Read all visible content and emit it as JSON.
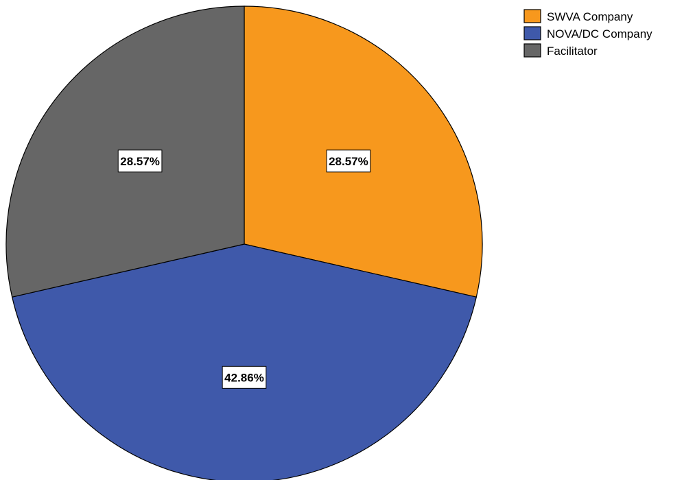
{
  "chart_data": {
    "type": "pie",
    "slices": [
      {
        "label": "SWVA Company",
        "value": 28.57,
        "display": "28.57%",
        "color": "#F7981D"
      },
      {
        "label": "NOVA/DC Company",
        "value": 42.86,
        "display": "42.86%",
        "color": "#3F59AA"
      },
      {
        "label": "Facilitator",
        "value": 28.57,
        "display": "28.57%",
        "color": "#666666"
      }
    ],
    "start_angle_deg": 0,
    "direction": "clockwise",
    "legend_position": "top-right"
  }
}
